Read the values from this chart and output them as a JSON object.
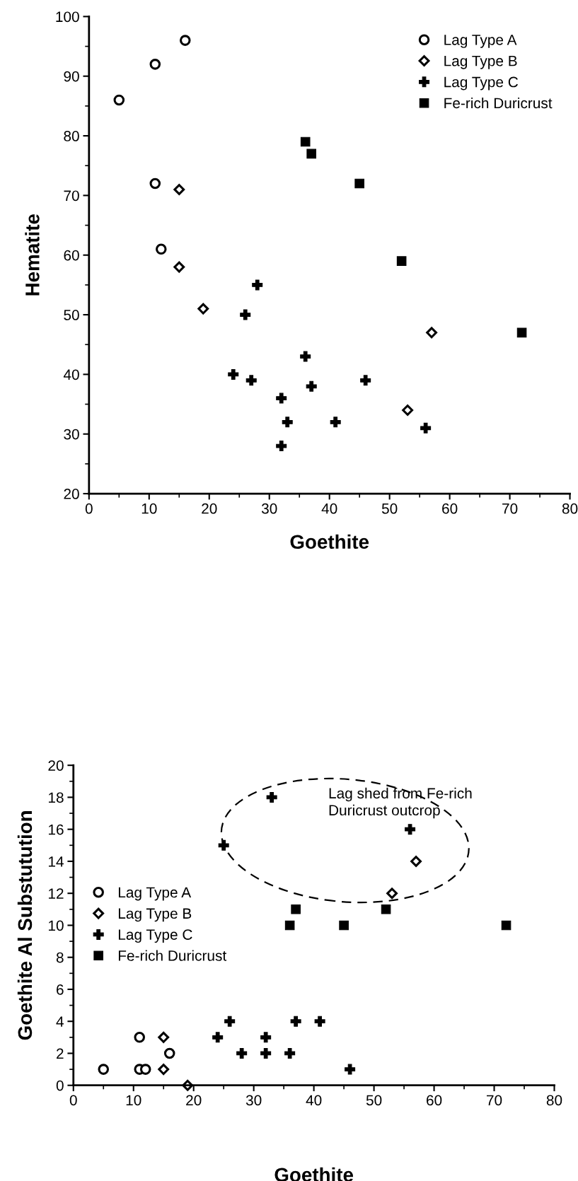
{
  "chart_data": [
    {
      "type": "scatter",
      "xlabel": "Goethite",
      "ylabel": "Hematite",
      "xlim": [
        0,
        80
      ],
      "xticks": [
        0,
        10,
        20,
        30,
        40,
        50,
        60,
        70,
        80
      ],
      "ylim": [
        20,
        100
      ],
      "yticks": [
        20,
        30,
        40,
        50,
        60,
        70,
        80,
        90,
        100
      ],
      "legend": "top right",
      "grid": false,
      "series": [
        {
          "name": "Lag Type A",
          "color": "#000000",
          "marker": "circle",
          "x": [
            5,
            11,
            16,
            11,
            12
          ],
          "values": [
            86,
            92,
            96,
            72,
            61
          ]
        },
        {
          "name": "Lag Type B",
          "color": "#000000",
          "marker": "diamond",
          "x": [
            15,
            15,
            19,
            57,
            53
          ],
          "values": [
            71,
            58,
            51,
            47,
            34
          ]
        },
        {
          "name": "Lag Type C",
          "color": "#000000",
          "marker": "cross",
          "x": [
            28,
            26,
            24,
            27,
            36,
            37,
            46,
            32,
            33,
            41,
            32,
            56
          ],
          "values": [
            55,
            50,
            40,
            39,
            43,
            38,
            39,
            36,
            32,
            32,
            28,
            31
          ]
        },
        {
          "name": "Fe-rich Duricrust",
          "color": "#000000",
          "marker": "square",
          "x": [
            36,
            37,
            45,
            52,
            72
          ],
          "values": [
            79,
            77,
            72,
            59,
            47
          ]
        }
      ]
    },
    {
      "type": "scatter",
      "xlabel": "Goethite",
      "ylabel": "Goethite Al Substutution",
      "xlim": [
        0,
        80
      ],
      "xticks": [
        0,
        10,
        20,
        30,
        40,
        50,
        60,
        70,
        80
      ],
      "ylim": [
        0,
        20
      ],
      "yticks": [
        0,
        2,
        4,
        6,
        8,
        10,
        12,
        14,
        16,
        18,
        20
      ],
      "legend": "left",
      "grid": false,
      "annotations": [
        "Lag shed from Fe-rich\nDuricrust outcrop"
      ],
      "series": [
        {
          "name": "Lag Type A",
          "color": "#000000",
          "marker": "circle",
          "x": [
            5,
            11,
            12,
            11,
            16
          ],
          "values": [
            1,
            1,
            1,
            3,
            2
          ]
        },
        {
          "name": "Lag Type B",
          "color": "#000000",
          "marker": "diamond",
          "x": [
            15,
            15,
            19,
            57,
            53
          ],
          "values": [
            3,
            1,
            0,
            14,
            12
          ]
        },
        {
          "name": "Lag Type C",
          "color": "#000000",
          "marker": "cross",
          "x": [
            33,
            25,
            56,
            26,
            37,
            41,
            24,
            32,
            28,
            32,
            36,
            46
          ],
          "values": [
            18,
            15,
            16,
            4,
            4,
            4,
            3,
            3,
            2,
            2,
            2,
            1
          ]
        },
        {
          "name": "Fe-rich Duricrust",
          "color": "#000000",
          "marker": "square",
          "x": [
            37,
            52,
            36,
            45,
            72
          ],
          "values": [
            11,
            11,
            10,
            10,
            10
          ]
        }
      ]
    }
  ]
}
